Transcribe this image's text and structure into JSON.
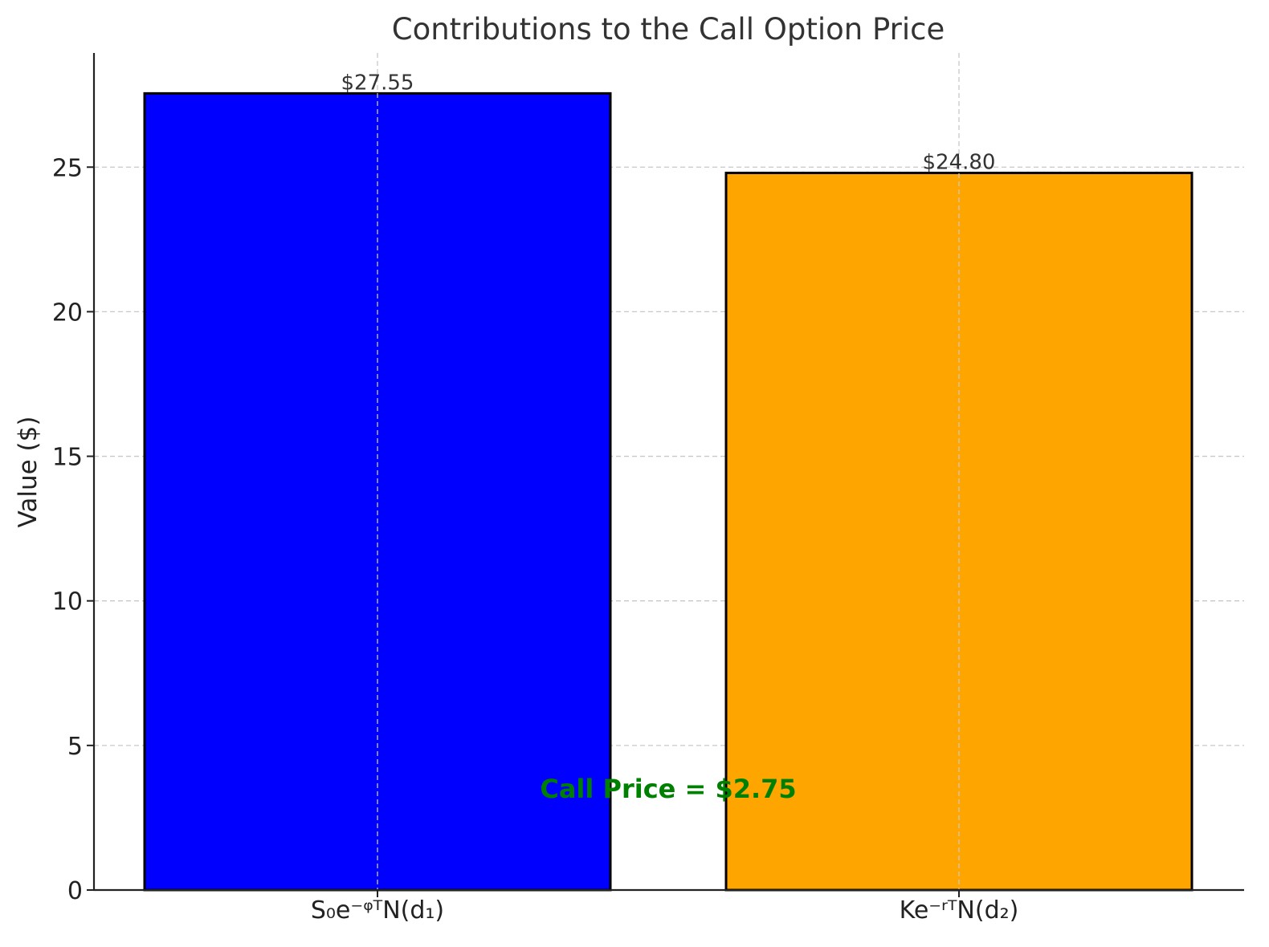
{
  "chart_data": {
    "type": "bar",
    "title": "Contributions to the Call Option Price",
    "xlabel": "",
    "ylabel": "Value ($)",
    "categories": [
      "S₀e⁻ᵠᵀN(d₁)",
      "Ke⁻ʳᵀN(d₂)"
    ],
    "values": [
      27.55,
      24.8
    ],
    "value_labels": [
      "$27.55",
      "$24.80"
    ],
    "colors": [
      "#0000ff",
      "#ffa500"
    ],
    "bar_edge_color": "#000000",
    "ylim": [
      0,
      29
    ],
    "yticks": [
      0,
      5,
      10,
      15,
      20,
      25
    ],
    "grid": true,
    "annotation": {
      "text": "Call Price = $2.75",
      "color": "#008000",
      "y": 3.5
    }
  }
}
